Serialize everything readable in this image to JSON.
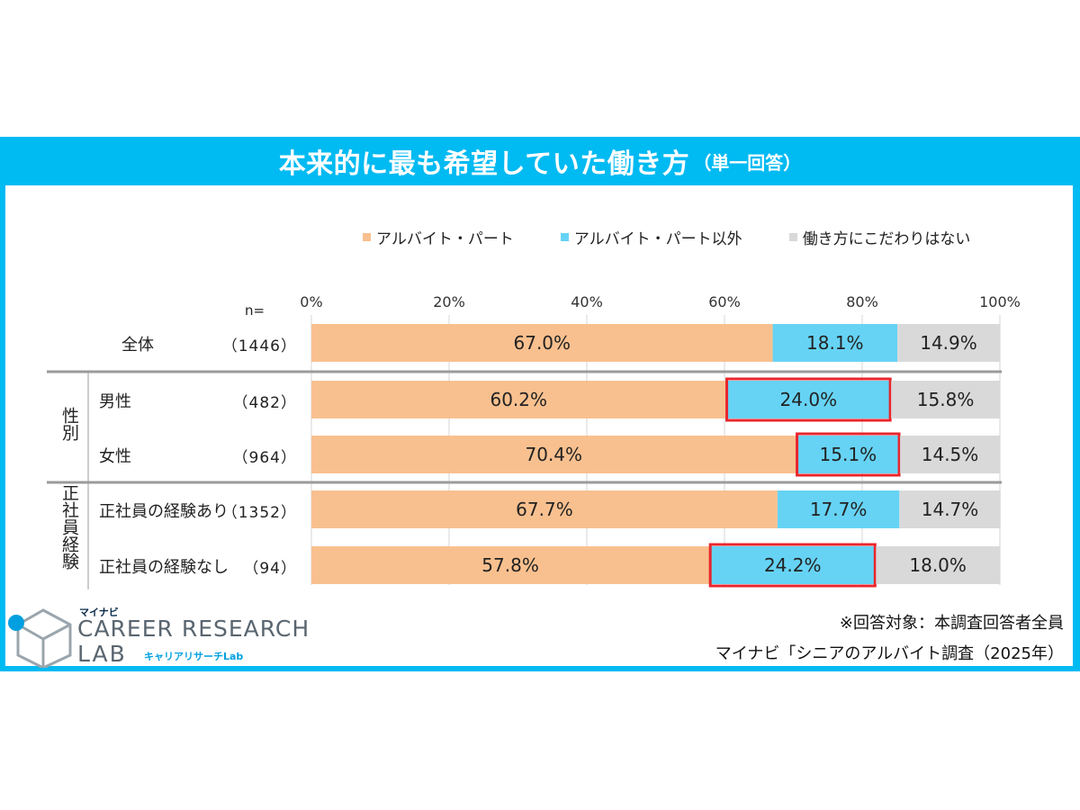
{
  "title": "本来的に最も希望していた働き方",
  "title_suffix": "（単一回答）",
  "n_header": "n=",
  "note": "※回答対象：本調査回答者全員",
  "source": "マイナビ「シニアのアルバイト調査（2025年）",
  "logo": {
    "top": "マイナビ",
    "line1": "CAREER RESEARCH",
    "line2": "LAB",
    "sub": "キャリアリサーチLab"
  },
  "groups": [
    {
      "label": "性別"
    },
    {
      "label": "正社員経験"
    }
  ],
  "chart_data": {
    "type": "bar",
    "orientation": "horizontal-stacked-100",
    "xlim": [
      0,
      100
    ],
    "x_ticks": [
      "0%",
      "20%",
      "40%",
      "60%",
      "80%",
      "100%"
    ],
    "legend_position": "top",
    "series": [
      {
        "name": "アルバイト・パート",
        "color": "#f9c08f"
      },
      {
        "name": "アルバイト・パート以外",
        "color": "#66d3f5"
      },
      {
        "name": "働き方にこだわりはない",
        "color": "#d9d9d9"
      }
    ],
    "categories": [
      {
        "label": "全体",
        "n": "（1446）",
        "values": [
          67.0,
          18.1,
          14.9
        ],
        "labels": [
          "67.0%",
          "18.1%",
          "14.9%"
        ],
        "highlight": false
      },
      {
        "label": "男性",
        "n": "（482）",
        "values": [
          60.2,
          24.0,
          15.8
        ],
        "labels": [
          "60.2%",
          "24.0%",
          "15.8%"
        ],
        "highlight": true
      },
      {
        "label": "女性",
        "n": "（964）",
        "values": [
          70.4,
          15.1,
          14.5
        ],
        "labels": [
          "70.4%",
          "15.1%",
          "14.5%"
        ],
        "highlight": true
      },
      {
        "label": "正社員の経験あり",
        "n": "（1352）",
        "values": [
          67.7,
          17.7,
          14.7
        ],
        "labels": [
          "67.7%",
          "17.7%",
          "14.7%"
        ],
        "highlight": false
      },
      {
        "label": "正社員の経験なし",
        "n": "（94）",
        "values": [
          57.8,
          24.2,
          18.0
        ],
        "labels": [
          "57.8%",
          "24.2%",
          "18.0%"
        ],
        "highlight": true
      }
    ],
    "highlight_color": "#e8262d"
  }
}
